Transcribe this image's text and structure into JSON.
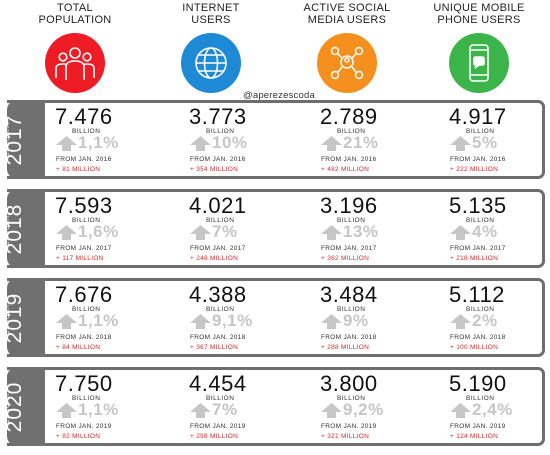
{
  "header": {
    "columns": [
      {
        "line1": "TOTAL",
        "line2": "POPULATION",
        "icon": "people-icon",
        "color": "#ee1c25"
      },
      {
        "line1": "INTERNET",
        "line2": "USERS",
        "icon": "globe-icon",
        "color": "#1e8ad6"
      },
      {
        "line1": "ACTIVE SOCIAL",
        "line2": "MEDIA USERS",
        "icon": "social-network-icon",
        "color": "#f5901e"
      },
      {
        "line1": "UNIQUE MOBILE",
        "line2": "PHONE USERS",
        "icon": "mobile-phone-icon",
        "color": "#3bb54a"
      }
    ],
    "handle": "@aperezescoda"
  },
  "rows": [
    {
      "year": "2017",
      "month": "JANUARY",
      "cells": [
        {
          "value": "7.476",
          "unit": "BILLION",
          "pct": "1,1%",
          "from": "FROM JAN. 2016",
          "delta": "+ 81 MILLION"
        },
        {
          "value": "3.773",
          "unit": "BILLION",
          "pct": "10%",
          "from": "FROM JAN. 2016",
          "delta": "+ 354 MILLION"
        },
        {
          "value": "2.789",
          "unit": "BILLION",
          "pct": "21%",
          "from": "FROM JAN. 2016",
          "delta": "+ 482 MILLION"
        },
        {
          "value": "4.917",
          "unit": "BILLION",
          "pct": "5%",
          "from": "FROM JAN. 2016",
          "delta": "+ 222 MILLION"
        }
      ]
    },
    {
      "year": "2018",
      "month": "JANUARY",
      "cells": [
        {
          "value": "7.593",
          "unit": "BILLION",
          "pct": "1,6%",
          "from": "FROM JAN. 2017",
          "delta": "+ 117 MILLION"
        },
        {
          "value": "4.021",
          "unit": "BILLION",
          "pct": "7%",
          "from": "FROM JAN. 2017",
          "delta": "+ 248 MILLION"
        },
        {
          "value": "3.196",
          "unit": "BILLION",
          "pct": "13%",
          "from": "FROM JAN. 2017",
          "delta": "+ 362 MILLION"
        },
        {
          "value": "5.135",
          "unit": "BILLION",
          "pct": "4%",
          "from": "FROM JAN. 2017",
          "delta": "+ 218 MILLION"
        }
      ]
    },
    {
      "year": "2019",
      "month": "JANUARY",
      "cells": [
        {
          "value": "7.676",
          "unit": "BILLION",
          "pct": "1,1%",
          "from": "FROM JAN. 2018",
          "delta": "+ 84 MILLION"
        },
        {
          "value": "4.388",
          "unit": "BILLION",
          "pct": "9,1%",
          "from": "FROM JAN. 2018",
          "delta": "+ 367 MILLION"
        },
        {
          "value": "3.484",
          "unit": "BILLION",
          "pct": "9%",
          "from": "FROM JAN. 2018",
          "delta": "+ 288 MILLION"
        },
        {
          "value": "5.112",
          "unit": "BILLION",
          "pct": "2%",
          "from": "FROM JAN. 2018",
          "delta": "+ 100 MILLION"
        }
      ]
    },
    {
      "year": "2020",
      "month": "JANUARY",
      "cells": [
        {
          "value": "7.750",
          "unit": "BILLION",
          "pct": "1,1%",
          "from": "FROM JAN. 2019",
          "delta": "+ 82 MILLION"
        },
        {
          "value": "4.454",
          "unit": "BILLION",
          "pct": "7%",
          "from": "FROM JAN. 2019",
          "delta": "+ 298 MILLION"
        },
        {
          "value": "3.800",
          "unit": "BILLION",
          "pct": "9,2%",
          "from": "FROM JAN. 2019",
          "delta": "+ 321 MILLION"
        },
        {
          "value": "5.190",
          "unit": "BILLION",
          "pct": "2,4%",
          "from": "FROM JAN. 2019",
          "delta": "+ 124 MILLION"
        }
      ]
    }
  ]
}
